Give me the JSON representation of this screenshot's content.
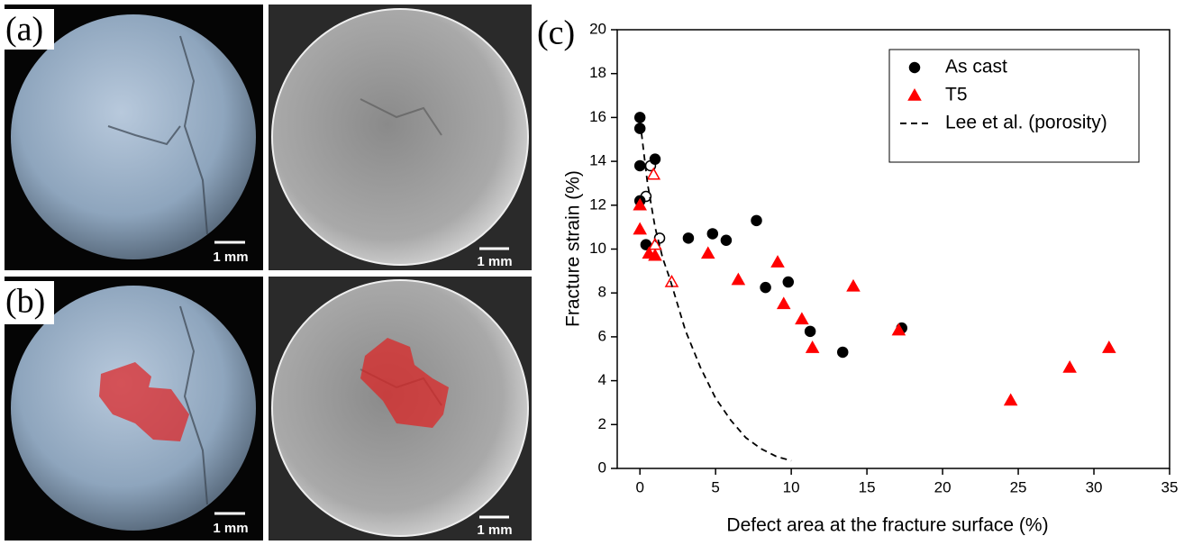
{
  "images": {
    "labels": [
      "(a)",
      "(b)"
    ],
    "scale_bars": [
      "1 mm",
      "1 mm",
      "1 mm",
      "1 mm"
    ]
  },
  "chart_data": {
    "type": "scatter",
    "panel_label": "(c)",
    "x_label": "Defect area at the fracture surface (%)",
    "y_label": "Fracture strain (%)",
    "xlim": [
      -1.5,
      35
    ],
    "ylim": [
      0,
      20
    ],
    "xticks": [
      0,
      5,
      10,
      15,
      20,
      25,
      30,
      35
    ],
    "yticks": [
      0,
      2,
      4,
      6,
      8,
      10,
      12,
      14,
      16,
      18,
      20
    ],
    "legend": "upper right",
    "series": [
      {
        "name": "As cast",
        "color": "#000000",
        "marker": "circle",
        "x": [
          0,
          0,
          0,
          0,
          0.4,
          1.0,
          3.2,
          4.8,
          5.7,
          7.7,
          8.3,
          9.8,
          11.25,
          13.4,
          17.3
        ],
        "values": [
          16.0,
          15.5,
          13.8,
          12.2,
          10.2,
          14.1,
          10.5,
          10.7,
          10.4,
          11.3,
          8.25,
          8.5,
          6.25,
          5.3,
          6.4
        ]
      },
      {
        "color": "#000000",
        "marker": "open-circle",
        "x": [
          0.4,
          0.7,
          1.3
        ],
        "values": [
          12.4,
          13.8,
          10.5
        ]
      },
      {
        "name": "T5",
        "color": "#ff0000",
        "marker": "triangle",
        "x": [
          0,
          0,
          0.6,
          1.0,
          4.5,
          6.5,
          9.1,
          9.5,
          10.7,
          11.4,
          14.1,
          17.1,
          24.5,
          28.4,
          31.0
        ],
        "values": [
          12.0,
          10.9,
          9.8,
          9.7,
          9.8,
          8.6,
          9.4,
          7.5,
          6.8,
          5.5,
          8.3,
          6.3,
          3.1,
          4.6,
          5.5
        ]
      },
      {
        "color": "#ff0000",
        "marker": "open-triangle",
        "x": [
          0.9,
          1.0,
          2.1
        ],
        "values": [
          13.4,
          10.2,
          8.5
        ]
      },
      {
        "name": "Lee et al. (porosity)",
        "color": "#000000",
        "marker": "dashed-line",
        "x": [
          0.1,
          0.5,
          1,
          1.5,
          2,
          3,
          4,
          5,
          6,
          7,
          8,
          9,
          10
        ],
        "values": [
          15.3,
          13.0,
          11.0,
          9.6,
          8.6,
          6.3,
          4.6,
          3.2,
          2.2,
          1.4,
          0.9,
          0.55,
          0.35
        ]
      }
    ]
  }
}
